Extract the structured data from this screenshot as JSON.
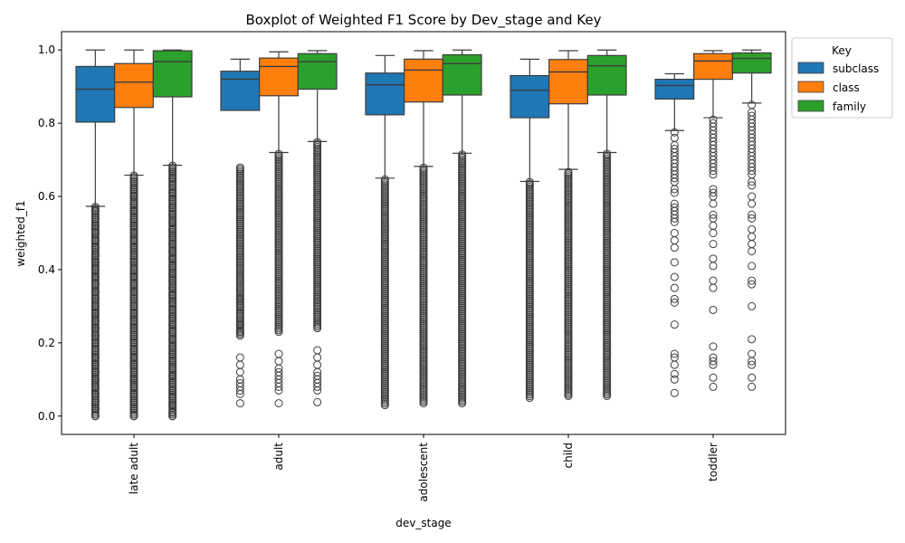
{
  "chart_data": {
    "type": "boxplot",
    "title": "Boxplot of Weighted F1 Score by Dev_stage and Key",
    "xlabel": "dev_stage",
    "ylabel": "weighted_f1",
    "ylim": [
      -0.05,
      1.05
    ],
    "y_ticks": [
      "0.0",
      "0.2",
      "0.4",
      "0.6",
      "0.8",
      "1.0"
    ],
    "grid": false,
    "legend": {
      "title": "Key",
      "placement": "upper-right-outside"
    },
    "categories": [
      "late adult",
      "adult",
      "adolescent",
      "child",
      "toddler"
    ],
    "series": [
      {
        "name": "subclass",
        "color": "#1f77b4",
        "boxes": [
          {
            "whisker_low": 0.573,
            "q1": 0.803,
            "median": 0.893,
            "q3": 0.955,
            "whisker_high": 1.0,
            "outlier_range": [
              0.0,
              0.573
            ],
            "outliers": [
              0.56,
              0.54,
              0.52,
              0.5,
              0.48,
              0.46,
              0.44,
              0.42,
              0.4,
              0.38,
              0.36,
              0.34,
              0.32,
              0.3,
              0.28,
              0.26,
              0.24,
              0.22,
              0.2,
              0.18,
              0.16,
              0.14,
              0.12,
              0.1,
              0.08,
              0.06,
              0.04,
              0.02,
              0.0
            ]
          },
          {
            "whisker_low": null,
            "q1": 0.835,
            "median": 0.92,
            "q3": 0.942,
            "whisker_high": 0.975,
            "outlier_range": [
              0.22,
              0.68
            ],
            "outliers": [
              0.3,
              0.32,
              0.25,
              0.23,
              0.16,
              0.14,
              0.12,
              0.1,
              0.09,
              0.08,
              0.07,
              0.06,
              0.035
            ]
          },
          {
            "whisker_low": 0.65,
            "q1": 0.823,
            "median": 0.905,
            "q3": 0.937,
            "whisker_high": 0.985,
            "outlier_range": [
              0.03,
              0.65
            ],
            "outliers": []
          },
          {
            "whisker_low": 0.641,
            "q1": 0.815,
            "median": 0.89,
            "q3": 0.93,
            "whisker_high": 0.975,
            "outlier_range": [
              0.05,
              0.64
            ],
            "outliers": []
          },
          {
            "whisker_low": 0.78,
            "q1": 0.866,
            "median": 0.903,
            "q3": 0.92,
            "whisker_high": 0.935,
            "outlier_range": null,
            "outliers": [
              0.775,
              0.76,
              0.74,
              0.73,
              0.72,
              0.71,
              0.7,
              0.69,
              0.68,
              0.67,
              0.66,
              0.65,
              0.64,
              0.62,
              0.61,
              0.58,
              0.57,
              0.56,
              0.55,
              0.54,
              0.53,
              0.5,
              0.48,
              0.46,
              0.42,
              0.38,
              0.35,
              0.32,
              0.31,
              0.25,
              0.17,
              0.16,
              0.14,
              0.115,
              0.1,
              0.063
            ]
          }
        ]
      },
      {
        "name": "class",
        "color": "#ff7f0e",
        "boxes": [
          {
            "whisker_low": 0.658,
            "q1": 0.843,
            "median": 0.912,
            "q3": 0.963,
            "whisker_high": 1.0,
            "outlier_range": [
              0.0,
              0.658
            ],
            "outliers": [
              0.64,
              0.62,
              0.6,
              0.58,
              0.56,
              0.54,
              0.52,
              0.5,
              0.48,
              0.46,
              0.44,
              0.42,
              0.4,
              0.38,
              0.36,
              0.34,
              0.32,
              0.3,
              0.28,
              0.26,
              0.24,
              0.22,
              0.2,
              0.18,
              0.16,
              0.14,
              0.12,
              0.1,
              0.08,
              0.06,
              0.04,
              0.02,
              0.0
            ]
          },
          {
            "whisker_low": 0.72,
            "q1": 0.875,
            "median": 0.955,
            "q3": 0.978,
            "whisker_high": 0.995,
            "outlier_range": [
              0.23,
              0.72
            ],
            "outliers": [
              0.17,
              0.15,
              0.13,
              0.12,
              0.11,
              0.1,
              0.09,
              0.08,
              0.07,
              0.035
            ]
          },
          {
            "whisker_low": 0.682,
            "q1": 0.858,
            "median": 0.945,
            "q3": 0.975,
            "whisker_high": 0.998,
            "outlier_range": [
              0.035,
              0.68
            ],
            "outliers": []
          },
          {
            "whisker_low": 0.674,
            "q1": 0.853,
            "median": 0.94,
            "q3": 0.974,
            "whisker_high": 0.998,
            "outlier_range": [
              0.055,
              0.67
            ],
            "outliers": []
          },
          {
            "whisker_low": 0.815,
            "q1": 0.92,
            "median": 0.97,
            "q3": 0.99,
            "whisker_high": 0.998,
            "outlier_range": null,
            "outliers": [
              0.81,
              0.8,
              0.79,
              0.78,
              0.77,
              0.76,
              0.75,
              0.74,
              0.73,
              0.72,
              0.71,
              0.7,
              0.69,
              0.68,
              0.67,
              0.66,
              0.62,
              0.61,
              0.6,
              0.58,
              0.55,
              0.54,
              0.52,
              0.5,
              0.47,
              0.43,
              0.41,
              0.37,
              0.35,
              0.29,
              0.19,
              0.16,
              0.15,
              0.14,
              0.105,
              0.08
            ]
          }
        ]
      },
      {
        "name": "family",
        "color": "#2ca02c",
        "boxes": [
          {
            "whisker_low": 0.685,
            "q1": 0.872,
            "median": 0.968,
            "q3": 0.998,
            "whisker_high": 1.0,
            "outlier_range": [
              0.0,
              0.685
            ],
            "outliers": [
              0.67,
              0.65,
              0.63,
              0.61,
              0.59,
              0.57,
              0.55,
              0.53,
              0.51,
              0.49,
              0.47,
              0.45,
              0.43,
              0.41,
              0.39,
              0.37,
              0.35,
              0.33,
              0.31,
              0.29,
              0.27,
              0.25,
              0.23,
              0.21,
              0.19,
              0.17,
              0.15,
              0.13,
              0.11,
              0.09,
              0.07,
              0.05,
              0.03,
              0.01,
              0.0
            ]
          },
          {
            "whisker_low": 0.75,
            "q1": 0.893,
            "median": 0.968,
            "q3": 0.99,
            "whisker_high": 0.998,
            "outlier_range": [
              0.24,
              0.75
            ],
            "outliers": [
              0.18,
              0.16,
              0.14,
              0.12,
              0.11,
              0.1,
              0.09,
              0.08,
              0.07,
              0.038
            ]
          },
          {
            "whisker_low": 0.718,
            "q1": 0.877,
            "median": 0.963,
            "q3": 0.987,
            "whisker_high": 1.0,
            "outlier_range": [
              0.035,
              0.718
            ],
            "outliers": []
          },
          {
            "whisker_low": 0.72,
            "q1": 0.877,
            "median": 0.957,
            "q3": 0.985,
            "whisker_high": 1.0,
            "outlier_range": [
              0.055,
              0.72
            ],
            "outliers": []
          },
          {
            "whisker_low": 0.855,
            "q1": 0.937,
            "median": 0.977,
            "q3": 0.992,
            "whisker_high": 1.0,
            "outlier_range": null,
            "outliers": [
              0.85,
              0.83,
              0.82,
              0.81,
              0.8,
              0.79,
              0.78,
              0.77,
              0.76,
              0.75,
              0.74,
              0.73,
              0.72,
              0.71,
              0.7,
              0.69,
              0.68,
              0.67,
              0.66,
              0.64,
              0.63,
              0.6,
              0.58,
              0.55,
              0.54,
              0.51,
              0.49,
              0.47,
              0.45,
              0.41,
              0.37,
              0.36,
              0.3,
              0.21,
              0.17,
              0.15,
              0.14,
              0.105,
              0.08
            ]
          }
        ]
      }
    ]
  }
}
